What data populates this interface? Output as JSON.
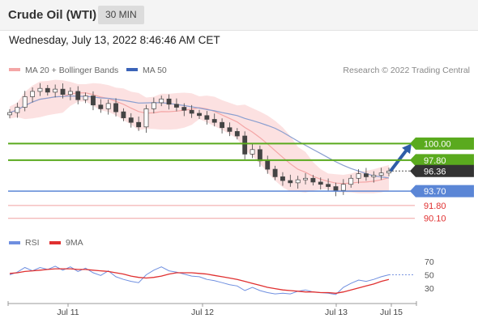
{
  "header": {
    "instrument": "Crude Oil (WTI)",
    "interval": "30 MIN"
  },
  "timestamp": "Wednesday, July 13, 2022 8:46:46 AM CET",
  "credit": "Research © 2022 Trading Central",
  "legend": {
    "ma20_label": "MA 20 + Bollinger Bands",
    "ma50_label": "MA 50",
    "ma20_color": "#f4a6a6",
    "ma50_color": "#3b63b8"
  },
  "rsi_legend": {
    "rsi_label": "RSI",
    "ma_label": "9MA",
    "rsi_color": "#6f8fe0",
    "ma_color": "#e03030"
  },
  "colors": {
    "resistance": "#5aaa1e",
    "support": "#5b86d6",
    "extended_support": "#f0a0a0",
    "current": "#333333",
    "arrow": "#2f5da8",
    "candle_up": "#ffffff",
    "candle_down": "#444444",
    "band_fill": "#fcdcdc"
  },
  "chart_data": [
    {
      "type": "candlestick",
      "title": "Crude Oil (WTI)",
      "interval": "30 MIN",
      "x_tick_labels": [
        "Jul 11",
        "Jul 12",
        "Jul 13",
        "Jul 15"
      ],
      "ylim": [
        89.0,
        108.5
      ],
      "close_path": [
        104.1,
        104.8,
        106.2,
        106.9,
        107.3,
        106.8,
        107.2,
        106.5,
        106.9,
        105.8,
        106.3,
        105.1,
        104.6,
        105.3,
        104.2,
        103.4,
        102.8,
        102.2,
        104.6,
        105.4,
        105.9,
        105.2,
        104.8,
        104.4,
        104.0,
        103.7,
        103.2,
        102.8,
        102.1,
        101.6,
        101.0,
        98.6,
        99.2,
        97.7,
        96.6,
        95.6,
        95.1,
        94.8,
        95.2,
        95.4,
        94.9,
        94.6,
        94.3,
        93.8,
        94.6,
        95.4,
        96.0,
        95.6,
        95.8,
        96.1,
        96.36
      ],
      "projection": {
        "from": 96.36,
        "to": 100.0
      },
      "levels": [
        {
          "label": "100.00",
          "value": 100.0,
          "kind": "resistance"
        },
        {
          "label": "97.80",
          "value": 97.8,
          "kind": "resistance"
        },
        {
          "label": "96.36",
          "value": 96.36,
          "kind": "current"
        },
        {
          "label": "93.70",
          "value": 93.7,
          "kind": "support"
        },
        {
          "label": "91.80",
          "value": 91.8,
          "kind": "extended_support"
        },
        {
          "label": "90.10",
          "value": 90.1,
          "kind": "extended_support"
        }
      ],
      "series": [
        {
          "name": "MA 20 + Bollinger Bands"
        },
        {
          "name": "MA 50"
        }
      ]
    },
    {
      "type": "line",
      "ylim": [
        15,
        80
      ],
      "y_ticks": [
        70,
        50,
        30
      ],
      "reference_level": 50,
      "series": [
        {
          "name": "RSI",
          "values": [
            50,
            54,
            61,
            56,
            61,
            58,
            63,
            57,
            62,
            55,
            60,
            53,
            49,
            56,
            47,
            43,
            40,
            38,
            50,
            57,
            62,
            56,
            54,
            51,
            48,
            47,
            43,
            41,
            38,
            35,
            33,
            26,
            31,
            26,
            23,
            21,
            22,
            21,
            25,
            27,
            24,
            23,
            22,
            20,
            31,
            37,
            42,
            40,
            43,
            47,
            50
          ]
        },
        {
          "name": "9MA",
          "values": [
            52,
            53,
            55,
            56,
            57,
            58,
            59,
            59,
            59,
            58,
            58,
            57,
            56,
            55,
            53,
            51,
            48,
            46,
            45,
            46,
            48,
            51,
            53,
            53,
            53,
            52,
            51,
            49,
            47,
            45,
            43,
            40,
            37,
            34,
            31,
            29,
            27,
            26,
            25,
            24,
            24,
            23,
            23,
            22,
            24,
            27,
            30,
            33,
            36,
            40,
            43
          ]
        }
      ]
    }
  ]
}
